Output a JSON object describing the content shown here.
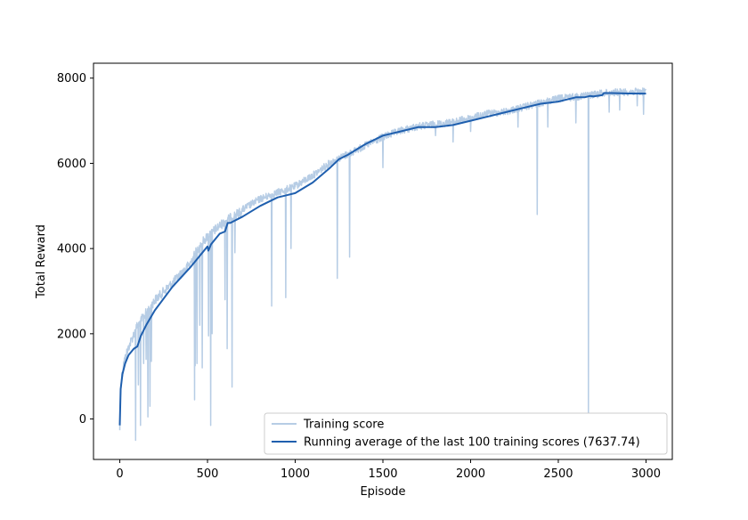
{
  "chart_data": {
    "type": "line",
    "title": "",
    "xlabel": "Episode",
    "ylabel": "Total Reward",
    "xlim": [
      -150,
      3150
    ],
    "ylim": [
      -950,
      8350
    ],
    "xticks": [
      0,
      500,
      1000,
      1500,
      2000,
      2500,
      3000
    ],
    "yticks": [
      0,
      2000,
      4000,
      6000,
      8000
    ],
    "grid": false,
    "legend_position": "lower-right",
    "series": [
      {
        "name": "Training score",
        "color": "#b7cde5",
        "style": "noisy",
        "trend": [
          [
            0,
            -100
          ],
          [
            5,
            900
          ],
          [
            20,
            1400
          ],
          [
            50,
            1800
          ],
          [
            100,
            2300
          ],
          [
            150,
            2600
          ],
          [
            200,
            2900
          ],
          [
            300,
            3300
          ],
          [
            400,
            3750
          ],
          [
            450,
            4150
          ],
          [
            500,
            4400
          ],
          [
            600,
            4750
          ],
          [
            700,
            5000
          ],
          [
            800,
            5250
          ],
          [
            900,
            5400
          ],
          [
            1000,
            5550
          ],
          [
            1100,
            5800
          ],
          [
            1200,
            6100
          ],
          [
            1300,
            6300
          ],
          [
            1400,
            6500
          ],
          [
            1500,
            6700
          ],
          [
            1600,
            6850
          ],
          [
            1700,
            6950
          ],
          [
            1800,
            7000
          ],
          [
            1900,
            7050
          ],
          [
            2000,
            7150
          ],
          [
            2100,
            7250
          ],
          [
            2200,
            7300
          ],
          [
            2300,
            7400
          ],
          [
            2400,
            7500
          ],
          [
            2500,
            7600
          ],
          [
            2600,
            7650
          ],
          [
            2700,
            7700
          ],
          [
            2800,
            7750
          ],
          [
            2900,
            7760
          ],
          [
            3000,
            7770
          ]
        ],
        "dips": [
          [
            90,
            -500
          ],
          [
            105,
            800
          ],
          [
            118,
            -150
          ],
          [
            135,
            1300
          ],
          [
            150,
            1400
          ],
          [
            160,
            50
          ],
          [
            172,
            300
          ],
          [
            180,
            1350
          ],
          [
            425,
            450
          ],
          [
            430,
            1250
          ],
          [
            440,
            1300
          ],
          [
            455,
            2200
          ],
          [
            470,
            1200
          ],
          [
            505,
            1950
          ],
          [
            518,
            -150
          ],
          [
            525,
            2000
          ],
          [
            600,
            2800
          ],
          [
            612,
            1650
          ],
          [
            640,
            750
          ],
          [
            655,
            3900
          ],
          [
            865,
            2650
          ],
          [
            945,
            2850
          ],
          [
            975,
            4000
          ],
          [
            1240,
            3300
          ],
          [
            1310,
            3800
          ],
          [
            1500,
            5900
          ],
          [
            1800,
            6650
          ],
          [
            1900,
            6500
          ],
          [
            2000,
            6750
          ],
          [
            2270,
            6850
          ],
          [
            2380,
            4800
          ],
          [
            2440,
            6850
          ],
          [
            2600,
            6950
          ],
          [
            2672,
            150
          ],
          [
            2790,
            7200
          ],
          [
            2850,
            7250
          ],
          [
            2950,
            7350
          ],
          [
            2985,
            7150
          ]
        ]
      },
      {
        "name": "Running average of the last 100 training scores (7637.74)",
        "color": "#1f5fae",
        "x": [
          0,
          5,
          15,
          30,
          50,
          80,
          100,
          120,
          150,
          200,
          300,
          400,
          450,
          500,
          505,
          520,
          570,
          600,
          615,
          630,
          700,
          800,
          900,
          950,
          1000,
          1100,
          1200,
          1250,
          1300,
          1400,
          1500,
          1600,
          1700,
          1750,
          1800,
          1900,
          2000,
          2100,
          2200,
          2300,
          2400,
          2500,
          2600,
          2650,
          2680,
          2700,
          2750,
          2760,
          2800,
          2900,
          3000
        ],
        "y": [
          -150,
          700,
          1050,
          1300,
          1500,
          1650,
          1700,
          1950,
          2200,
          2550,
          3100,
          3550,
          3800,
          4050,
          3950,
          4100,
          4350,
          4400,
          4600,
          4600,
          4750,
          5000,
          5200,
          5250,
          5300,
          5550,
          5900,
          6100,
          6200,
          6450,
          6650,
          6750,
          6850,
          6850,
          6850,
          6900,
          7000,
          7100,
          7200,
          7300,
          7400,
          7450,
          7550,
          7550,
          7580,
          7570,
          7600,
          7650,
          7650,
          7640,
          7638
        ]
      }
    ]
  }
}
